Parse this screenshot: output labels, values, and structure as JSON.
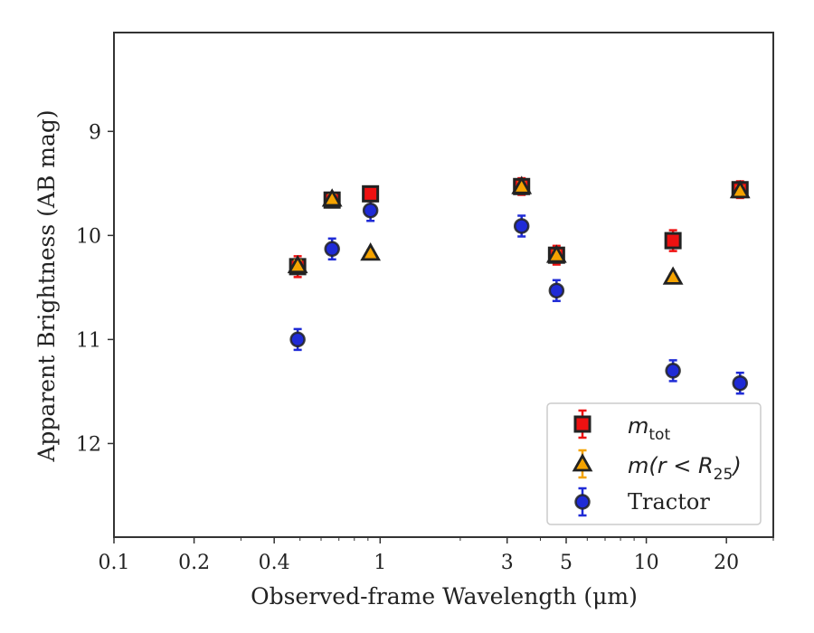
{
  "chart_data": {
    "type": "scatter",
    "title": "",
    "xlabel": "Observed-frame Wavelength (μm)",
    "ylabel": "Apparent Brightness (AB mag)",
    "xscale": "log",
    "xlim": [
      0.1,
      30
    ],
    "ylim": [
      12.9,
      8.05
    ],
    "y_inverted": true,
    "xticks": [
      {
        "value": 0.1,
        "label": "0.1"
      },
      {
        "value": 0.2,
        "label": "0.2"
      },
      {
        "value": 0.4,
        "label": "0.4"
      },
      {
        "value": 1,
        "label": "1"
      },
      {
        "value": 3,
        "label": "3"
      },
      {
        "value": 5,
        "label": "5"
      },
      {
        "value": 10,
        "label": "10"
      },
      {
        "value": 20,
        "label": "20"
      }
    ],
    "yticks": [
      {
        "value": 9,
        "label": "9"
      },
      {
        "value": 10,
        "label": "10"
      },
      {
        "value": 11,
        "label": "11"
      },
      {
        "value": 12,
        "label": "12"
      }
    ],
    "grid": false,
    "legend_position": "bottom-right",
    "series": [
      {
        "name": "m_tot",
        "marker": "square",
        "color": "#ee1111",
        "edge_color": "#222222",
        "points": [
          {
            "x": 0.49,
            "y": 10.3,
            "yerr": 0.1
          },
          {
            "x": 0.66,
            "y": 9.66,
            "yerr": 0.07
          },
          {
            "x": 0.92,
            "y": 9.6,
            "yerr": 0.07
          },
          {
            "x": 3.4,
            "y": 9.53,
            "yerr": 0.08
          },
          {
            "x": 4.6,
            "y": 10.19,
            "yerr": 0.09
          },
          {
            "x": 12.6,
            "y": 10.05,
            "yerr": 0.1
          },
          {
            "x": 22.5,
            "y": 9.56,
            "yerr": 0.08
          }
        ]
      },
      {
        "name": "m(r < R25)",
        "marker": "triangle",
        "color": "#f5a300",
        "edge_color": "#222222",
        "points": [
          {
            "x": 0.49,
            "y": 10.29,
            "yerr": 0.05
          },
          {
            "x": 0.66,
            "y": 9.65,
            "yerr": 0.04
          },
          {
            "x": 0.92,
            "y": 10.17,
            "yerr": 0.03
          },
          {
            "x": 3.4,
            "y": 9.53,
            "yerr": 0.04
          },
          {
            "x": 4.6,
            "y": 10.19,
            "yerr": 0.04
          },
          {
            "x": 12.6,
            "y": 10.4,
            "yerr": 0.03
          },
          {
            "x": 22.5,
            "y": 9.57,
            "yerr": 0.04
          }
        ]
      },
      {
        "name": "Tractor",
        "marker": "circle",
        "color": "#1f2bd6",
        "edge_color": "#222222",
        "points": [
          {
            "x": 0.49,
            "y": 11.0,
            "yerr": 0.1
          },
          {
            "x": 0.66,
            "y": 10.13,
            "yerr": 0.1
          },
          {
            "x": 0.92,
            "y": 9.76,
            "yerr": 0.1
          },
          {
            "x": 3.4,
            "y": 9.91,
            "yerr": 0.1
          },
          {
            "x": 4.6,
            "y": 10.53,
            "yerr": 0.1
          },
          {
            "x": 12.6,
            "y": 11.3,
            "yerr": 0.1
          },
          {
            "x": 22.5,
            "y": 11.42,
            "yerr": 0.1
          }
        ]
      }
    ],
    "legend": [
      {
        "base": "m",
        "sub": "tot"
      },
      {
        "base": "m",
        "rest": "(r < R",
        "sub": "25",
        "close": ")"
      },
      {
        "base": "Tractor"
      }
    ]
  }
}
